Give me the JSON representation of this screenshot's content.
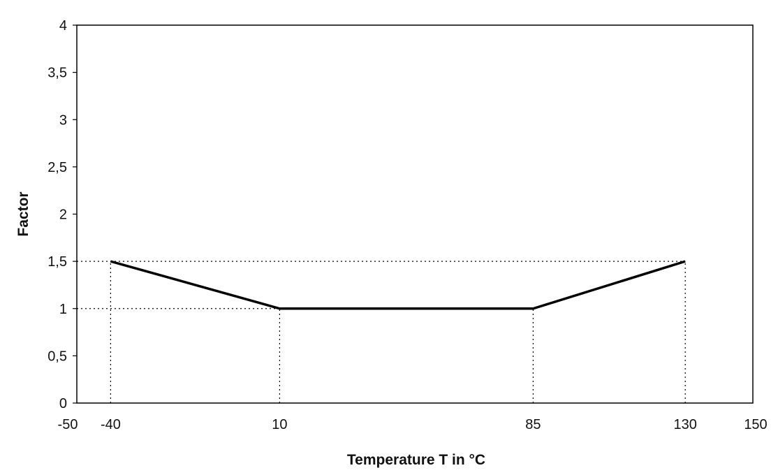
{
  "chart_data": {
    "type": "line",
    "title": "",
    "xlabel": "Temperature T in °C",
    "ylabel": "Factor",
    "xlim": [
      -50,
      150
    ],
    "ylim": [
      0,
      4
    ],
    "x_ticks": [
      {
        "value": -50,
        "label": "-50"
      },
      {
        "value": -40,
        "label": "-40"
      },
      {
        "value": 10,
        "label": "10"
      },
      {
        "value": 85,
        "label": "85"
      },
      {
        "value": 130,
        "label": "130"
      },
      {
        "value": 150,
        "label": "150"
      }
    ],
    "y_ticks": [
      {
        "value": 0,
        "label": "0"
      },
      {
        "value": 0.5,
        "label": "0,5"
      },
      {
        "value": 1,
        "label": "1"
      },
      {
        "value": 1.5,
        "label": "1,5"
      },
      {
        "value": 2,
        "label": "2"
      },
      {
        "value": 2.5,
        "label": "2,5"
      },
      {
        "value": 3,
        "label": "3"
      },
      {
        "value": 3.5,
        "label": "3,5"
      },
      {
        "value": 4,
        "label": "4"
      }
    ],
    "series": [
      {
        "x": [
          -40,
          10,
          85,
          130
        ],
        "y": [
          1.5,
          1,
          1,
          1.5
        ],
        "color": "#000000"
      }
    ],
    "reference_lines": {
      "vertical_x": [
        -40,
        10,
        85,
        130
      ],
      "horizontal_y": [
        1,
        1.5
      ],
      "style": "dotted"
    },
    "grid": false,
    "legend": "none"
  }
}
